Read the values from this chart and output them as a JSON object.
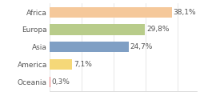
{
  "categories": [
    "Africa",
    "Europa",
    "Asia",
    "America",
    "Oceania"
  ],
  "values": [
    38.1,
    29.8,
    24.7,
    7.1,
    0.3
  ],
  "labels": [
    "38,1%",
    "29,8%",
    "24,7%",
    "7,1%",
    "0,3%"
  ],
  "bar_colors": [
    "#f5c89a",
    "#b8cc8a",
    "#7f9fc4",
    "#f5d878",
    "#e87878"
  ],
  "background_color": "#ffffff",
  "xlim_max": 46,
  "bar_height": 0.6,
  "label_fontsize": 6.5,
  "tick_fontsize": 6.5,
  "grid_ticks": [
    0,
    10,
    20,
    30,
    40
  ],
  "grid_color": "#dddddd",
  "spine_color": "#cccccc"
}
